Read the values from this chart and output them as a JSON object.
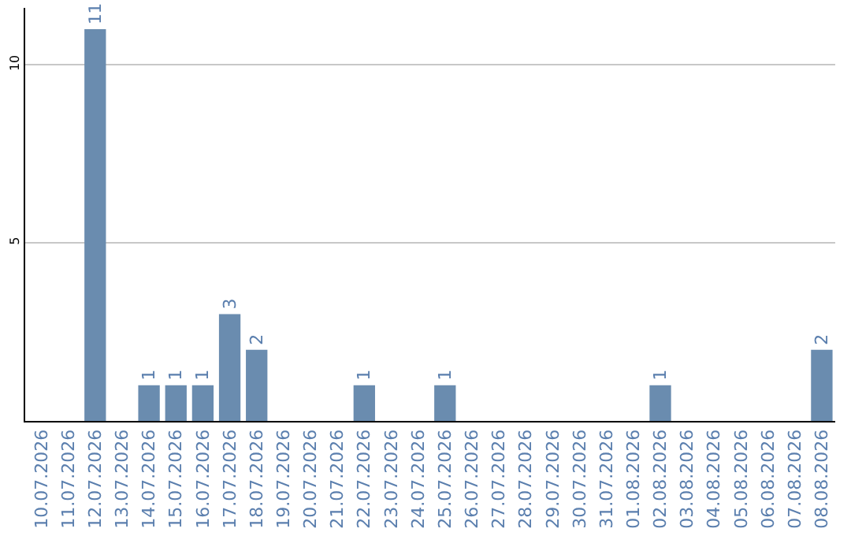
{
  "chart_data": {
    "type": "bar",
    "categories": [
      "10.07.2026",
      "11.07.2026",
      "12.07.2026",
      "13.07.2026",
      "14.07.2026",
      "15.07.2026",
      "16.07.2026",
      "17.07.2026",
      "18.07.2026",
      "19.07.2026",
      "20.07.2026",
      "21.07.2026",
      "22.07.2026",
      "23.07.2026",
      "24.07.2026",
      "25.07.2026",
      "26.07.2026",
      "27.07.2026",
      "28.07.2026",
      "29.07.2026",
      "30.07.2026",
      "31.07.2026",
      "01.08.2026",
      "02.08.2026",
      "03.08.2026",
      "04.08.2026",
      "05.08.2026",
      "06.08.2026",
      "07.08.2026",
      "08.08.2026"
    ],
    "values": [
      0,
      0,
      11,
      0,
      1,
      1,
      1,
      3,
      2,
      0,
      0,
      0,
      1,
      0,
      0,
      1,
      0,
      0,
      0,
      0,
      0,
      0,
      0,
      1,
      0,
      0,
      0,
      0,
      0,
      2
    ],
    "value_labels": [
      null,
      null,
      "11",
      null,
      "1",
      "1",
      "1",
      "3",
      "2",
      null,
      null,
      null,
      "1",
      null,
      null,
      "1",
      null,
      null,
      null,
      null,
      null,
      null,
      null,
      "1",
      null,
      null,
      null,
      null,
      null,
      "2"
    ],
    "color": "#6a8caf",
    "ylim": [
      0,
      11.6
    ],
    "yticks": [
      5,
      10
    ],
    "grid": "y",
    "legend": false
  }
}
